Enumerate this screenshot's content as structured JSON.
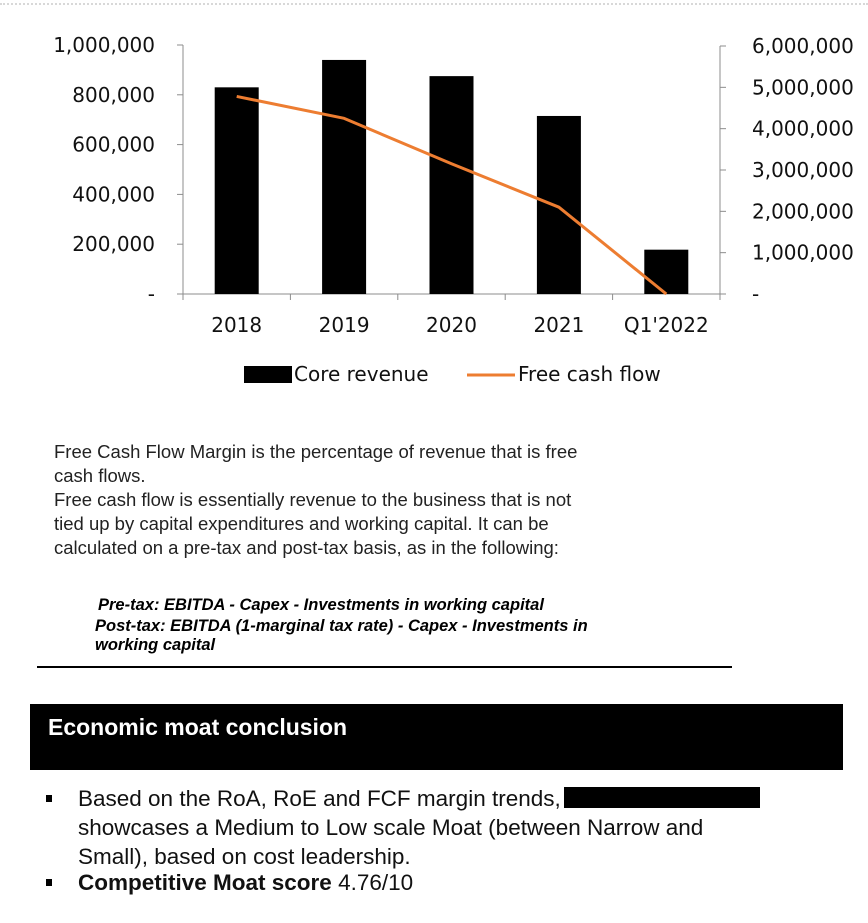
{
  "chart_data": {
    "type": "bar",
    "categories": [
      "2018",
      "2019",
      "2020",
      "2021",
      "Q1'2022"
    ],
    "series": [
      {
        "name": "Core revenue",
        "type": "bar",
        "axis": "left",
        "values": [
          830000,
          940000,
          875000,
          715000,
          178000
        ]
      },
      {
        "name": "Free cash flow",
        "type": "line",
        "axis": "right",
        "values": [
          4780000,
          4250000,
          3150000,
          2100000,
          0
        ]
      }
    ],
    "y_left": {
      "ylim": [
        0,
        1000000
      ],
      "tick_labels": [
        "-",
        "200,000",
        "400,000",
        "600,000",
        "800,000",
        "1,000,000"
      ]
    },
    "y_right": {
      "ylim": [
        0,
        6000000
      ],
      "tick_labels": [
        "-",
        "1,000,000",
        "2,000,000",
        "3,000,000",
        "4,000,000",
        "5,000,000",
        "6,000,000"
      ]
    },
    "legend_position": "bottom",
    "grid": false,
    "colors": {
      "bar": "#000000",
      "line": "#ED7D31"
    }
  },
  "text": {
    "para1_line1": "Free Cash Flow Margin is the percentage of revenue that is free",
    "para1_line2": "cash flows.",
    "para2_line1": "Free cash flow is essentially revenue to the business that is not",
    "para2_line2": "tied up by capital expenditures and working capital.  It can be",
    "para2_line3": "calculated on a pre-tax and post-tax basis, as in the following:",
    "formula_pretax": "Pre-tax: EBITDA - Capex - Investments in working capital",
    "formula_posttax_line1": "Post-tax: EBITDA (1-marginal tax rate) - Capex - Investments in",
    "formula_posttax_line2": "working  capital"
  },
  "section": {
    "title": "Economic moat conclusion",
    "bullet1_line1": "Based on the RoA, RoE and FCF margin trends,",
    "bullet1_line2": "showcases a Medium to Low scale Moat (between Narrow and",
    "bullet1_line3": "Small), based on cost leadership.",
    "bullet2_label": "Competitive Moat score",
    "bullet2_value": "4.76/10"
  }
}
